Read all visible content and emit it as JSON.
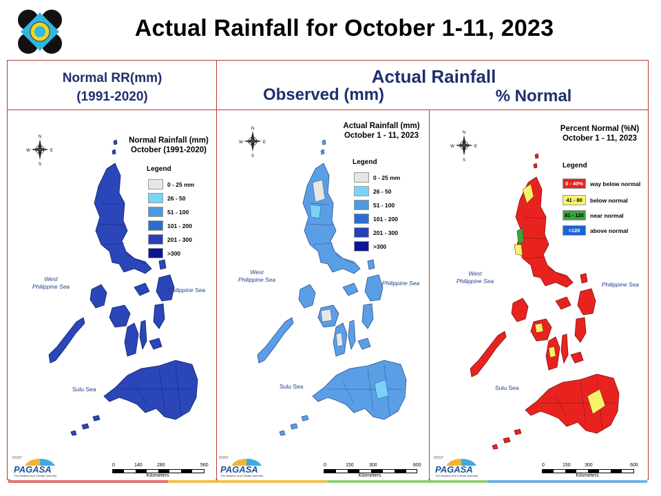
{
  "title": "Actual Rainfall for October 1-11, 2023",
  "headers": {
    "normal_line1": "Normal RR(mm)",
    "normal_line2": "(1991-2020)",
    "actual": "Actual Rainfall",
    "observed": "Observed (mm)",
    "percent": "% Normal"
  },
  "compass": {
    "n": "N",
    "s": "S",
    "e": "E",
    "w": "W"
  },
  "sea_labels": {
    "west1": "West",
    "west2": "Philippine Sea",
    "east": "Philippine Sea",
    "sulu": "Sulu Sea"
  },
  "panels": [
    {
      "map_title_line1": "Normal Rainfall (mm)",
      "map_title_line2": "October (1991-2020)",
      "legend_title": "Legend",
      "legend": [
        {
          "label": "0 - 25 mm",
          "color": "#e6e6e6"
        },
        {
          "label": "26 - 50",
          "color": "#78d3f7"
        },
        {
          "label": "51 - 100",
          "color": "#4b9ae2"
        },
        {
          "label": "101 - 200",
          "color": "#2a6fd0"
        },
        {
          "label": "201 - 300",
          "color": "#2540b8"
        },
        {
          "label": ">300",
          "color": "#0b1694"
        }
      ],
      "scale": {
        "ticks": [
          "0",
          "140",
          "280",
          "560"
        ],
        "unit": "Kilometers"
      },
      "land_color": "#2a46b8",
      "border_color": "#10206c"
    },
    {
      "map_title_line1": "Actual Rainfall (mm)",
      "map_title_line2": "October 1 - 11, 2023",
      "legend_title": "Legend",
      "legend": [
        {
          "label": "0 - 25 mm",
          "color": "#e6e6e6"
        },
        {
          "label": "26 - 50",
          "color": "#78d3f7"
        },
        {
          "label": "51 - 100",
          "color": "#4b9ae2"
        },
        {
          "label": "101 - 200",
          "color": "#2a6fd0"
        },
        {
          "label": "201 - 300",
          "color": "#2540b8"
        },
        {
          "label": ">300",
          "color": "#0b1694"
        }
      ],
      "scale": {
        "ticks": [
          "0",
          "150",
          "300",
          "600"
        ],
        "unit": "Kilometers"
      },
      "land_color": "#5a9fe6",
      "border_color": "#2a4f8a"
    },
    {
      "map_title_line1": "Percent Normal (%N)",
      "map_title_line2": "October 1 - 11, 2023",
      "legend_title": "Legend",
      "legend": [
        {
          "range": "0 - 40%",
          "label": "way below normal",
          "color": "#e8231f",
          "text_color": "#ffffff"
        },
        {
          "range": "41 - 80",
          "label": "below normal",
          "color": "#f4f36a",
          "text_color": "#000000"
        },
        {
          "range": "81 - 120",
          "label": "near normal",
          "color": "#3aa53a",
          "text_color": "#000000"
        },
        {
          "range": ">120",
          "label": "above normal",
          "color": "#1e63d6",
          "text_color": "#ffffff"
        }
      ],
      "scale": {
        "ticks": [
          "0",
          "150",
          "300",
          "600"
        ],
        "unit": "Kilometers"
      },
      "land_color": "#e8231f",
      "border_color": "#7a1010",
      "accent_yellow": "#f4f36a",
      "accent_green": "#3aa53a"
    }
  ],
  "footer_logo": {
    "top": "DOST",
    "mid": "PAGASA",
    "tag": "The Weather and Climate Authority"
  },
  "bottom_bar_colors": [
    "#e57373",
    "#f2c14e",
    "#8fcf7a",
    "#6fb3e0"
  ]
}
